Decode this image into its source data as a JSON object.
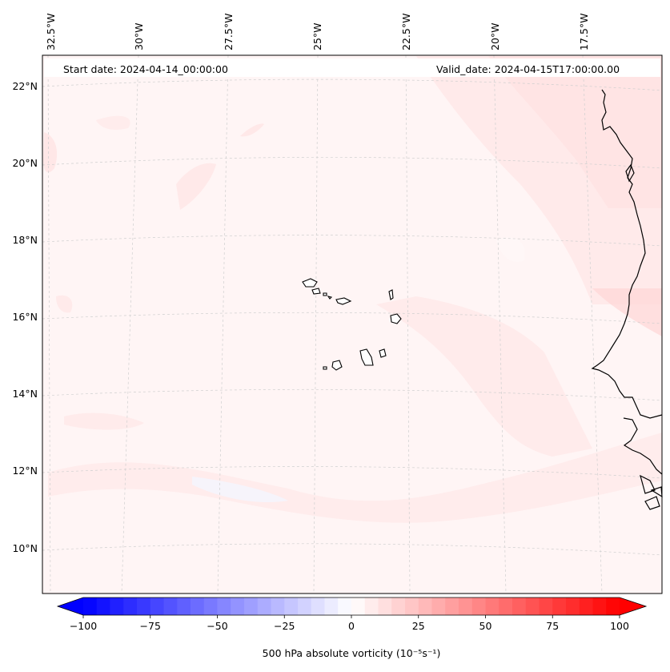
{
  "map": {
    "start_date_text": "Start date: 2024-04-14_00:00:00",
    "valid_date_text": "Valid_date: 2024-04-15T17:00:00.00",
    "lon_labels": [
      "32.5°W",
      "30°W",
      "27.5°W",
      "25°W",
      "22.5°W",
      "20°W",
      "17.5°W"
    ],
    "lat_labels": [
      "22°N",
      "20°N",
      "18°N",
      "16°N",
      "14°N",
      "12°N",
      "10°N"
    ],
    "field_color": "#fff5f5",
    "coast_color": "#000000",
    "grid_color": "#c8c8c8"
  },
  "colorbar": {
    "label": "500 hPa absolute vorticity (10⁻⁵s⁻¹)",
    "ticks": [
      "−100",
      "−75",
      "−50",
      "−25",
      "0",
      "25",
      "50",
      "75",
      "100"
    ],
    "vmin": -100,
    "vmax": 100,
    "levels": 41,
    "low_color": "#0000ff",
    "mid_color": "#ffffff",
    "high_color": "#ff0000"
  }
}
